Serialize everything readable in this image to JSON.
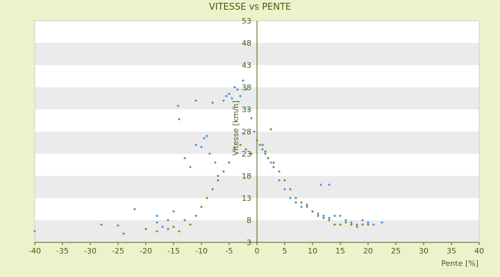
{
  "chart_data": {
    "type": "scatter",
    "title": "VITESSE vs PENTE",
    "xlabel": "Pente [%]",
    "ylabel": "Vitesse [km/h]",
    "xlim": [
      -40,
      40
    ],
    "ylim": [
      3,
      53
    ],
    "xticks": [
      "-40",
      "-35",
      "-30",
      "-25",
      "-20",
      "-15",
      "-10",
      "-5",
      "0",
      "5",
      "10",
      "15",
      "20",
      "25",
      "30",
      "35",
      "40"
    ],
    "yticks": [
      "3",
      "8",
      "13",
      "18",
      "23",
      "28",
      "33",
      "38",
      "43",
      "48",
      "53"
    ],
    "grid": "alternating horizontal bands",
    "legend": "none",
    "colors": {
      "blue": "#3d8ed8",
      "olive": "#7d8a18",
      "background": "#eef2cc",
      "band": "#ebebeb",
      "axis": "#4a5a12"
    },
    "series": [
      {
        "color": "#3d8ed8",
        "points": [
          [
            -40,
            5.5
          ],
          [
            -28,
            7
          ],
          [
            -25,
            6.8
          ],
          [
            -22,
            10.5
          ],
          [
            -18,
            9
          ],
          [
            -18,
            7.5
          ],
          [
            -17,
            6.5
          ],
          [
            -16,
            8
          ],
          [
            -15,
            10
          ],
          [
            -14.2,
            33.8
          ],
          [
            -14,
            30.8
          ],
          [
            -13,
            22
          ],
          [
            -12,
            20
          ],
          [
            -11,
            25
          ],
          [
            -11,
            35
          ],
          [
            -10,
            24.5
          ],
          [
            -9.5,
            26.5
          ],
          [
            -9,
            27
          ],
          [
            -8.5,
            23
          ],
          [
            -8,
            34.5
          ],
          [
            -7.5,
            21
          ],
          [
            -7,
            18
          ],
          [
            -6,
            35
          ],
          [
            -5.5,
            36
          ],
          [
            -5,
            36.5
          ],
          [
            -4.5,
            35.5
          ],
          [
            -4,
            38
          ],
          [
            -3.5,
            37.5
          ],
          [
            -3,
            36
          ],
          [
            -2.5,
            39.5
          ],
          [
            -2,
            37.5
          ],
          [
            -1.5,
            33
          ],
          [
            -1,
            31
          ],
          [
            -0.5,
            28
          ],
          [
            0,
            26
          ],
          [
            0.5,
            25
          ],
          [
            1,
            24
          ],
          [
            1.5,
            23
          ],
          [
            2,
            22
          ],
          [
            2.5,
            21
          ],
          [
            3,
            20
          ],
          [
            4,
            17
          ],
          [
            5,
            15
          ],
          [
            6,
            13
          ],
          [
            7,
            12
          ],
          [
            8,
            11
          ],
          [
            9,
            11.5
          ],
          [
            10,
            10
          ],
          [
            11,
            9.5
          ],
          [
            12,
            9
          ],
          [
            13,
            8.5
          ],
          [
            11.5,
            16
          ],
          [
            13,
            16
          ],
          [
            14,
            9
          ],
          [
            15,
            9
          ],
          [
            16,
            8
          ],
          [
            17,
            7.5
          ],
          [
            18,
            7
          ],
          [
            19,
            8
          ],
          [
            20,
            7.5
          ],
          [
            21,
            7
          ],
          [
            22.5,
            7.5
          ]
        ]
      },
      {
        "color": "#7d8a18",
        "points": [
          [
            -24,
            5
          ],
          [
            -20,
            6
          ],
          [
            -18,
            5.5
          ],
          [
            -16,
            6
          ],
          [
            -15,
            6.5
          ],
          [
            -14,
            5.5
          ],
          [
            -13,
            8
          ],
          [
            -12,
            7
          ],
          [
            -11,
            9
          ],
          [
            -10,
            11
          ],
          [
            -9,
            13
          ],
          [
            -8,
            15
          ],
          [
            -7,
            17
          ],
          [
            -6,
            19
          ],
          [
            -5,
            21
          ],
          [
            -4,
            24
          ],
          [
            -3,
            25
          ],
          [
            -2,
            24
          ],
          [
            -1,
            23
          ],
          [
            0,
            26
          ],
          [
            1,
            25
          ],
          [
            1.5,
            23.5
          ],
          [
            2,
            22
          ],
          [
            2.5,
            28.5
          ],
          [
            3,
            21
          ],
          [
            4,
            19
          ],
          [
            5,
            17
          ],
          [
            6,
            15
          ],
          [
            7,
            13
          ],
          [
            8,
            12
          ],
          [
            9,
            11
          ],
          [
            10,
            10
          ],
          [
            11,
            9
          ],
          [
            12,
            8.5
          ],
          [
            13,
            8
          ],
          [
            14,
            7
          ],
          [
            15,
            7
          ],
          [
            16,
            7.5
          ],
          [
            17,
            7
          ],
          [
            18,
            6.5
          ],
          [
            19,
            7
          ],
          [
            20,
            7
          ]
        ]
      }
    ]
  }
}
